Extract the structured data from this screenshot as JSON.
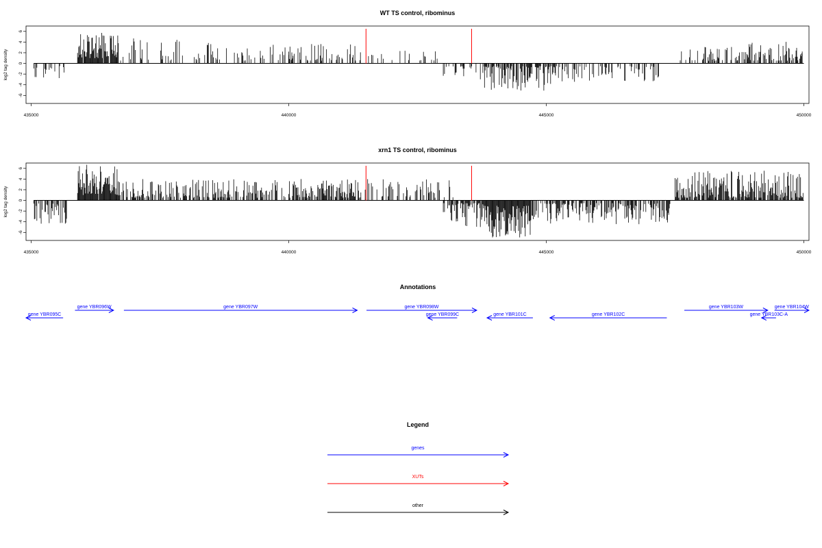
{
  "colors": {
    "gene": "#0000ff",
    "xut": "#ff0000",
    "other": "#000000",
    "bar": "#000000"
  },
  "chart_data": [
    {
      "type": "bar",
      "title": "WT TS control, ribominus",
      "ylabel": "log2 tag density",
      "xlim": [
        434900,
        450100
      ],
      "ylim": [
        -7.5,
        7
      ],
      "yticks": [
        -6,
        -4,
        -2,
        0,
        2,
        4,
        6
      ],
      "xticks": [
        435000,
        440000,
        445000,
        450000
      ],
      "xtick_labels": [
        "435000",
        "440000",
        "445000",
        "450000"
      ],
      "xut_markers": [
        441500,
        443550
      ],
      "regions": [
        {
          "from": 435050,
          "to": 435650,
          "sign": -1,
          "min": 0.5,
          "max": 4.0,
          "density": 0.25,
          "seed": 11
        },
        {
          "from": 435900,
          "to": 436700,
          "sign": 1,
          "min": 1.0,
          "max": 5.8,
          "density": 0.95,
          "seed": 12
        },
        {
          "from": 436700,
          "to": 438500,
          "sign": 1,
          "min": 0.5,
          "max": 4.8,
          "density": 0.2,
          "seed": 13
        },
        {
          "from": 438500,
          "to": 440000,
          "sign": 1,
          "min": 0.5,
          "max": 3.5,
          "density": 0.25,
          "seed": 14
        },
        {
          "from": 440000,
          "to": 441400,
          "sign": 1,
          "min": 0.5,
          "max": 4.0,
          "density": 0.45,
          "seed": 15
        },
        {
          "from": 441500,
          "to": 443000,
          "sign": 1,
          "min": 0.5,
          "max": 2.5,
          "density": 0.15,
          "seed": 16
        },
        {
          "from": 443000,
          "to": 443800,
          "sign": -1,
          "min": 0.5,
          "max": 3.0,
          "density": 0.3,
          "seed": 17
        },
        {
          "from": 443800,
          "to": 445200,
          "sign": -1,
          "min": 0.5,
          "max": 5.2,
          "density": 0.7,
          "seed": 18
        },
        {
          "from": 445200,
          "to": 447200,
          "sign": -1,
          "min": 0.5,
          "max": 3.5,
          "density": 0.35,
          "seed": 19
        },
        {
          "from": 447600,
          "to": 448900,
          "sign": 1,
          "min": 0.5,
          "max": 3.5,
          "density": 0.45,
          "seed": 20
        },
        {
          "from": 448900,
          "to": 450000,
          "sign": 1,
          "min": 0.5,
          "max": 4.3,
          "density": 0.5,
          "seed": 21
        }
      ]
    },
    {
      "type": "bar",
      "title": "xrn1 TS control, ribominus",
      "ylabel": "log2 tag density",
      "xlim": [
        434900,
        450100
      ],
      "ylim": [
        -7.5,
        7
      ],
      "yticks": [
        -6,
        -4,
        -2,
        0,
        2,
        4,
        6
      ],
      "xticks": [
        435000,
        440000,
        445000,
        450000
      ],
      "xtick_labels": [
        "435000",
        "440000",
        "445000",
        "450000"
      ],
      "xut_markers": [
        441500,
        443550
      ],
      "regions": [
        {
          "from": 435050,
          "to": 435700,
          "sign": -1,
          "min": 0.5,
          "max": 4.7,
          "density": 0.55,
          "seed": 31
        },
        {
          "from": 435900,
          "to": 436700,
          "sign": 1,
          "min": 1.0,
          "max": 6.8,
          "density": 0.95,
          "seed": 32
        },
        {
          "from": 436700,
          "to": 440000,
          "sign": 1,
          "min": 0.5,
          "max": 4.0,
          "density": 0.55,
          "seed": 33
        },
        {
          "from": 440000,
          "to": 441400,
          "sign": 1,
          "min": 0.5,
          "max": 4.0,
          "density": 0.7,
          "seed": 34
        },
        {
          "from": 441400,
          "to": 443200,
          "sign": 1,
          "min": 0.5,
          "max": 4.0,
          "density": 0.35,
          "seed": 35
        },
        {
          "from": 443000,
          "to": 443800,
          "sign": -1,
          "min": 0.5,
          "max": 5.0,
          "density": 0.6,
          "seed": 36
        },
        {
          "from": 443800,
          "to": 444700,
          "sign": -1,
          "min": 1.0,
          "max": 7.0,
          "density": 0.95,
          "seed": 37
        },
        {
          "from": 444700,
          "to": 447400,
          "sign": -1,
          "min": 0.5,
          "max": 4.5,
          "density": 0.65,
          "seed": 38
        },
        {
          "from": 447500,
          "to": 450000,
          "sign": 1,
          "min": 0.5,
          "max": 5.6,
          "density": 0.75,
          "seed": 39
        }
      ]
    }
  ],
  "annotations": {
    "title": "Annotations",
    "xlim": [
      434900,
      450100
    ],
    "features": [
      {
        "label": "gene YBR095C",
        "start": 434900,
        "end": 435620,
        "strand": "-",
        "row": 2,
        "kind": "gene"
      },
      {
        "label": "gene YBR096W",
        "start": 435850,
        "end": 436600,
        "strand": "+",
        "row": 1,
        "kind": "gene"
      },
      {
        "label": "gene YBR097W",
        "start": 436800,
        "end": 441330,
        "strand": "+",
        "row": 1,
        "kind": "gene"
      },
      {
        "label": "gene YBR098W",
        "start": 441510,
        "end": 443650,
        "strand": "+",
        "row": 1,
        "kind": "gene"
      },
      {
        "label": "gene YBR099C",
        "start": 442700,
        "end": 443270,
        "strand": "-",
        "row": 2,
        "kind": "gene"
      },
      {
        "label": "gene YBR101C",
        "start": 443850,
        "end": 444740,
        "strand": "-",
        "row": 2,
        "kind": "gene"
      },
      {
        "label": "gene YBR102C",
        "start": 445070,
        "end": 447340,
        "strand": "-",
        "row": 2,
        "kind": "gene"
      },
      {
        "label": "gene YBR103W",
        "start": 447680,
        "end": 449300,
        "strand": "+",
        "row": 1,
        "kind": "gene"
      },
      {
        "label": "gene YBR103C-A",
        "start": 449180,
        "end": 449460,
        "strand": "-",
        "row": 2,
        "kind": "gene"
      },
      {
        "label": "gene YBR104W",
        "start": 449430,
        "end": 450100,
        "strand": "+",
        "row": 1,
        "kind": "gene"
      }
    ]
  },
  "legend": {
    "title": "Legend",
    "items": [
      {
        "label": "genes",
        "kind": "gene"
      },
      {
        "label": "XUTs",
        "kind": "xut"
      },
      {
        "label": "other",
        "kind": "other"
      }
    ]
  }
}
